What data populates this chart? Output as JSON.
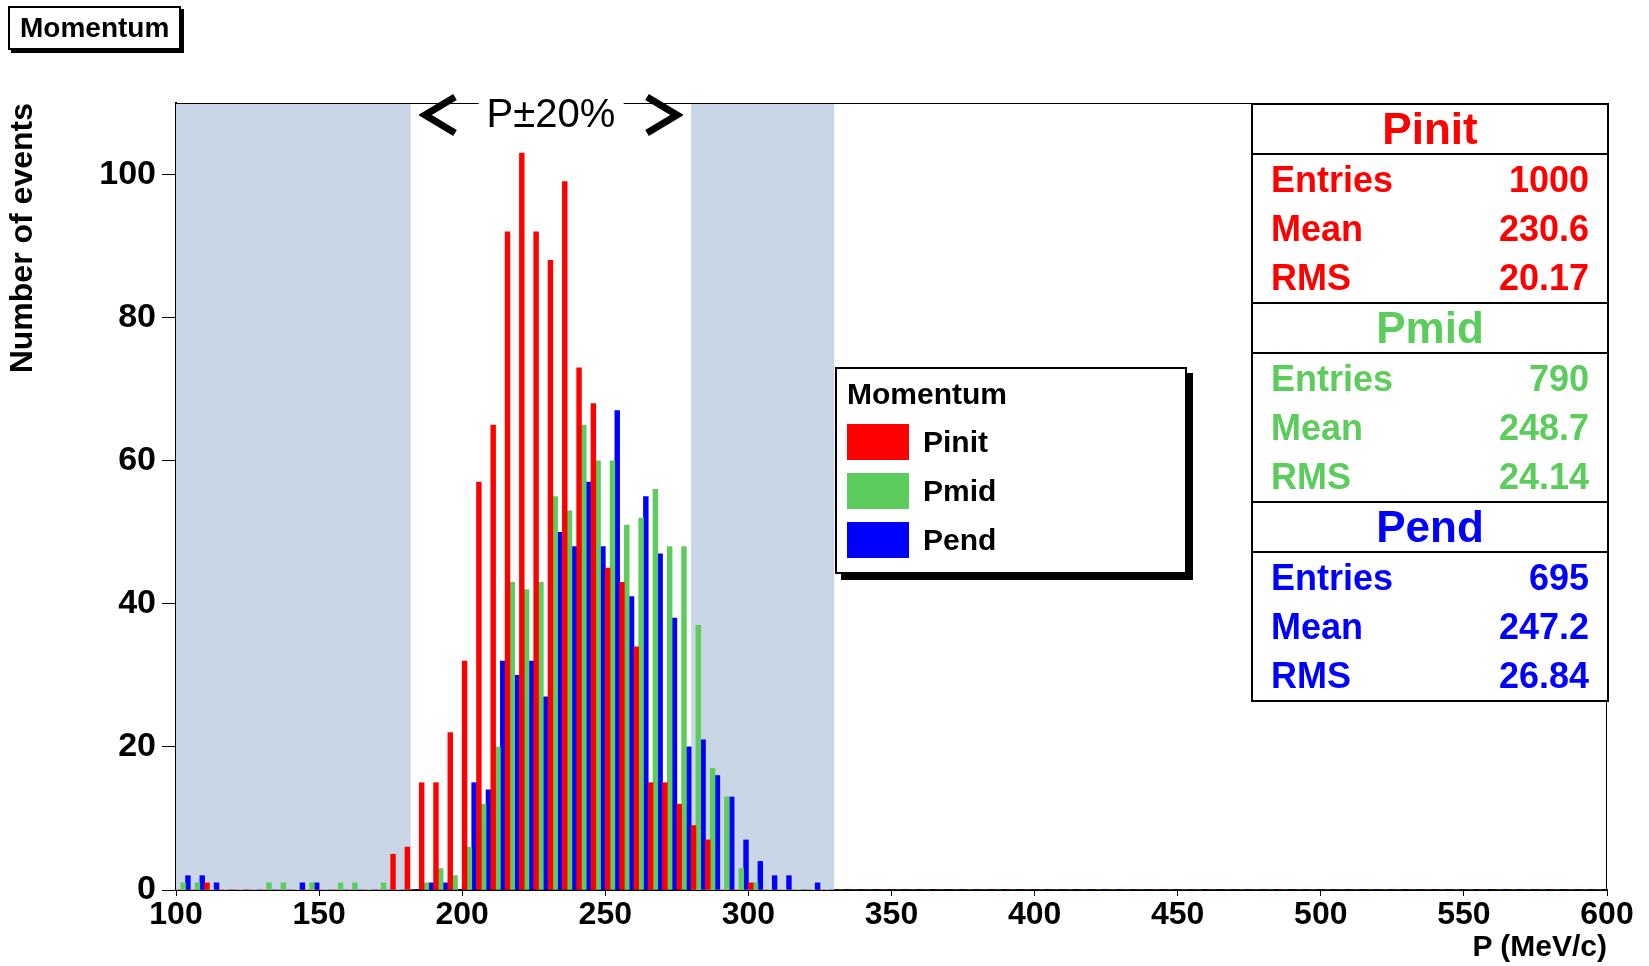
{
  "chart_data": {
    "type": "histogram",
    "title": "Momentum",
    "xlabel": "P (MeV/c)",
    "ylabel": "Number of events",
    "legend_title": "Momentum",
    "legend": "right",
    "grid": false,
    "xlim": [
      100,
      600
    ],
    "xticks": [
      100,
      150,
      200,
      250,
      300,
      350,
      400,
      450,
      500,
      550,
      600
    ],
    "ylim": [
      0,
      110
    ],
    "yticks": [
      0,
      20,
      40,
      60,
      80,
      100
    ],
    "bins": [
      100,
      105,
      110,
      115,
      120,
      125,
      130,
      135,
      140,
      145,
      150,
      155,
      160,
      165,
      170,
      175,
      180,
      185,
      190,
      195,
      200,
      205,
      210,
      215,
      220,
      225,
      230,
      235,
      240,
      245,
      250,
      255,
      260,
      265,
      270,
      275,
      280,
      285,
      290,
      295,
      300,
      305,
      310,
      315,
      320,
      325,
      330,
      335,
      340,
      345,
      350,
      355,
      360,
      365,
      370,
      375,
      380,
      385,
      390,
      395,
      400,
      405,
      410,
      415,
      420,
      425,
      430,
      435,
      440,
      445,
      450,
      455,
      460,
      465,
      470,
      475,
      480,
      485,
      490,
      495,
      500,
      505,
      510,
      515,
      520,
      525,
      530,
      535,
      540,
      545,
      550,
      555,
      560,
      565,
      570,
      575,
      580,
      585,
      590,
      595,
      600
    ],
    "series": [
      {
        "name": "Pinit",
        "color": "#ff0000",
        "values": [
          0,
          0,
          1,
          0,
          0,
          0,
          0,
          0,
          0,
          0,
          0,
          0,
          0,
          0,
          0,
          5,
          6,
          15,
          15,
          22,
          32,
          57,
          65,
          92,
          103,
          92,
          88,
          99,
          73,
          68,
          45,
          43,
          34,
          15,
          15,
          12,
          9,
          7,
          0,
          0,
          1,
          0,
          0,
          0,
          0,
          0,
          0,
          0,
          0,
          0,
          0,
          0,
          0,
          0,
          0,
          0,
          0,
          0,
          0,
          0,
          0,
          0,
          0,
          0,
          0,
          0,
          0,
          0,
          0,
          0,
          0,
          0,
          0,
          0,
          0,
          0,
          0,
          0,
          0,
          0,
          0,
          0,
          0,
          0,
          0,
          0,
          0,
          0,
          0,
          0,
          0,
          0,
          0,
          0,
          0,
          0,
          0,
          0,
          0,
          0
        ]
      },
      {
        "name": "Pmid",
        "color": "#5ccc5c",
        "values": [
          1,
          1,
          0,
          0,
          0,
          0,
          1,
          1,
          0,
          1,
          0,
          1,
          1,
          0,
          1,
          0,
          0,
          1,
          3,
          2,
          6,
          12,
          20,
          43,
          42,
          43,
          55,
          53,
          65,
          60,
          60,
          51,
          52,
          56,
          48,
          48,
          37,
          17,
          13,
          3,
          1,
          0,
          0,
          0,
          0,
          0,
          0,
          0,
          0,
          0,
          0,
          0,
          0,
          0,
          0,
          0,
          0,
          0,
          0,
          0,
          0,
          0,
          0,
          0,
          0,
          0,
          0,
          0,
          0,
          0,
          0,
          0,
          0,
          0,
          0,
          0,
          0,
          0,
          0,
          0,
          0,
          0,
          0,
          0,
          0,
          0,
          0,
          0,
          0,
          0,
          0,
          0,
          0,
          0,
          0,
          0,
          0,
          0,
          0,
          0
        ]
      },
      {
        "name": "Pend",
        "color": "#0000ff",
        "values": [
          2,
          2,
          1,
          0,
          0,
          0,
          0,
          0,
          1,
          1,
          0,
          0,
          0,
          0,
          0,
          0,
          0,
          1,
          1,
          0,
          15,
          14,
          32,
          30,
          32,
          27,
          50,
          48,
          57,
          48,
          67,
          41,
          55,
          47,
          38,
          20,
          21,
          16,
          13,
          7,
          4,
          2,
          2,
          0,
          1,
          0,
          0,
          0,
          0,
          0,
          0,
          0,
          0,
          0,
          0,
          0,
          0,
          0,
          0,
          0,
          0,
          0,
          0,
          0,
          0,
          0,
          0,
          0,
          0,
          0,
          0,
          0,
          0,
          0,
          0,
          0,
          0,
          0,
          0,
          0,
          0,
          0,
          0,
          0,
          0,
          0,
          0,
          0,
          0,
          0,
          0,
          0,
          0,
          0,
          0,
          0,
          0,
          0,
          0,
          0
        ]
      }
    ],
    "bands": [
      {
        "axis": "x",
        "from": 100,
        "to": 182,
        "color": "#c9d6e5"
      },
      {
        "axis": "x",
        "from": 280,
        "to": 330,
        "color": "#c9d6e5"
      }
    ],
    "annotations": [
      "P±20%",
      "Entries",
      "1000",
      "Mean",
      "230.6",
      "RMS",
      "20.17",
      "Entries",
      "790",
      "Mean",
      "248.7",
      "RMS",
      "24.14",
      "Entries",
      "695",
      "Mean",
      "247.2",
      "RMS",
      "26.84"
    ]
  }
}
